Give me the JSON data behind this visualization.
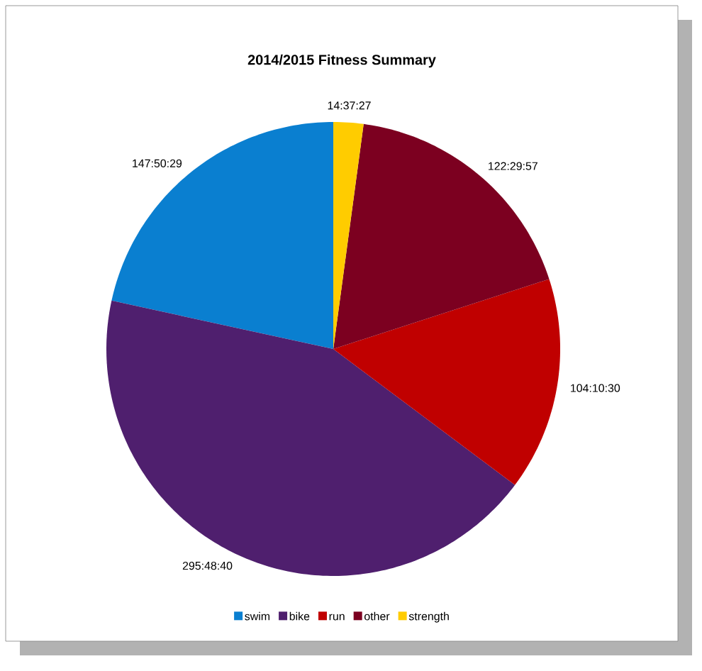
{
  "chart_data": {
    "type": "pie",
    "title": "2014/2015 Fitness Summary",
    "categories": [
      "swim",
      "bike",
      "run",
      "other",
      "strength"
    ],
    "values": [
      147.8414,
      295.8111,
      104.175,
      122.4992,
      14.6242
    ],
    "value_labels": [
      "147:50:29",
      "295:48:40",
      "104:10:30",
      "122:29:57",
      "14:37:27"
    ],
    "colors": [
      "#0a7fd0",
      "#4f1f6e",
      "#c00000",
      "#7c0020",
      "#ffcc00"
    ],
    "legend": "bottom"
  }
}
